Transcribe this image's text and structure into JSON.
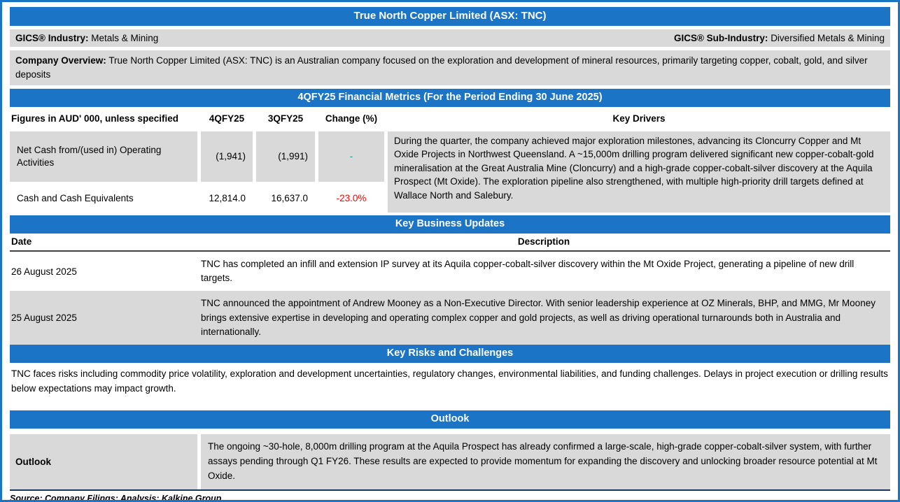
{
  "title": "True North Copper Limited (ASX: TNC)",
  "gics": {
    "industry_label": "GICS® Industry:",
    "industry_value": "Metals & Mining",
    "sub_industry_label": "GICS® Sub-Industry:",
    "sub_industry_value": "Diversified Metals & Mining"
  },
  "company_overview": {
    "label": "Company Overview:",
    "text": "True North Copper Limited (ASX: TNC) is an Australian company focused on the exploration and development of mineral resources, primarily targeting copper, cobalt, gold, and silver deposits"
  },
  "financial_metrics": {
    "header": "4QFY25 Financial Metrics (For the Period Ending 30 June 2025)",
    "columns": [
      "Figures in AUD' 000, unless specified",
      "4QFY25",
      "3QFY25",
      "Change (%)",
      "Key Drivers"
    ],
    "rows": [
      {
        "metric": "Net Cash from/(used in) Operating Activities",
        "q4": "(1,941)",
        "q3": "(1,991)",
        "change": "-"
      },
      {
        "metric": "Cash and Cash Equivalents",
        "q4": "12,814.0",
        "q3": "16,637.0",
        "change": "-23.0%"
      }
    ],
    "key_drivers": "During the quarter,  the company achieved major exploration milestones, advancing its Cloncurry Copper and Mt Oxide Projects in Northwest Queensland. A ~15,000m drilling program delivered significant new copper-cobalt-gold mineralisation at the Great Australia Mine (Cloncurry) and a high-grade copper-cobalt-silver discovery at the Aquila Prospect (Mt Oxide). The exploration pipeline also strengthened, with multiple high-priority drill targets defined at Wallace North and Salebury."
  },
  "business_updates": {
    "header": "Key Business Updates",
    "date_column": "Date",
    "description_column": "Description",
    "rows": [
      {
        "date": "26 August 2025",
        "description": "TNC has completed an infill and extension IP survey at its Aquila copper-cobalt-silver discovery within the Mt Oxide Project, generating a pipeline of new drill targets."
      },
      {
        "date": "25 August 2025",
        "description": "TNC announced the appointment of Andrew Mooney as a Non-Executive Director. With senior leadership experience at OZ Minerals, BHP, and MMG, Mr Mooney brings extensive expertise in developing and operating complex copper and gold projects, as well as driving operational turnarounds both in Australia and internationally."
      }
    ]
  },
  "risks": {
    "header": "Key Risks and Challenges",
    "text": "TNC faces risks including commodity price volatility, exploration and development uncertainties, regulatory changes, environmental liabilities, and funding challenges. Delays in project execution or drilling results below expectations may impact growth."
  },
  "outlook": {
    "header": "Outlook",
    "label": "Outlook",
    "text": "The ongoing ~30-hole, 8,000m drilling program at the Aquila Prospect has already confirmed a large-scale, high-grade copper-cobalt-silver system, with further assays pending through Q1 FY26. These results are expected to provide momentum for expanding the discovery and unlocking broader resource potential at Mt Oxide."
  },
  "footer": "Source: Company Filings; Analysis: Kalkine Group",
  "colors": {
    "header-blue": "#1B74C5",
    "panel-gray": "#D9D9D9",
    "negative-red": "#FF0000",
    "positive-teal": "#00A79D",
    "rule-dark": "#17365D"
  }
}
